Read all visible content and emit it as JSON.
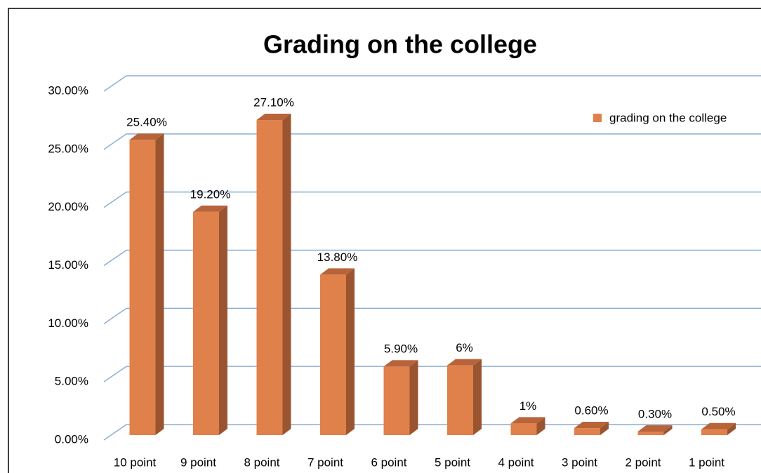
{
  "chart_data": {
    "type": "bar3d",
    "title": "Grading on the college",
    "categories": [
      "10 point",
      "9 point",
      "8 point",
      "7 point",
      "6 point",
      "5 point",
      "4 point",
      "3 point",
      "2 point",
      "1 point"
    ],
    "series": [
      {
        "name": "grading on the college",
        "color": "#e0804a",
        "values": [
          25.4,
          19.2,
          27.1,
          13.8,
          5.9,
          6,
          1,
          0.6,
          0.3,
          0.5
        ],
        "value_labels": [
          "25.40%",
          "19.20%",
          "27.10%",
          "13.80%",
          "5.90%",
          "6%",
          "1%",
          "0.60%",
          "0.30%",
          "0.50%"
        ]
      }
    ],
    "ylim": [
      0,
      30
    ],
    "yticks": [
      {
        "value": 0,
        "label": "0.00%"
      },
      {
        "value": 5,
        "label": "5.00%"
      },
      {
        "value": 10,
        "label": "10.00%"
      },
      {
        "value": 15,
        "label": "15.00%"
      },
      {
        "value": 20,
        "label": "20.00%"
      },
      {
        "value": 25,
        "label": "25.00%"
      },
      {
        "value": 30,
        "label": "30.00%"
      }
    ],
    "grid": true,
    "legend": "top-right"
  }
}
